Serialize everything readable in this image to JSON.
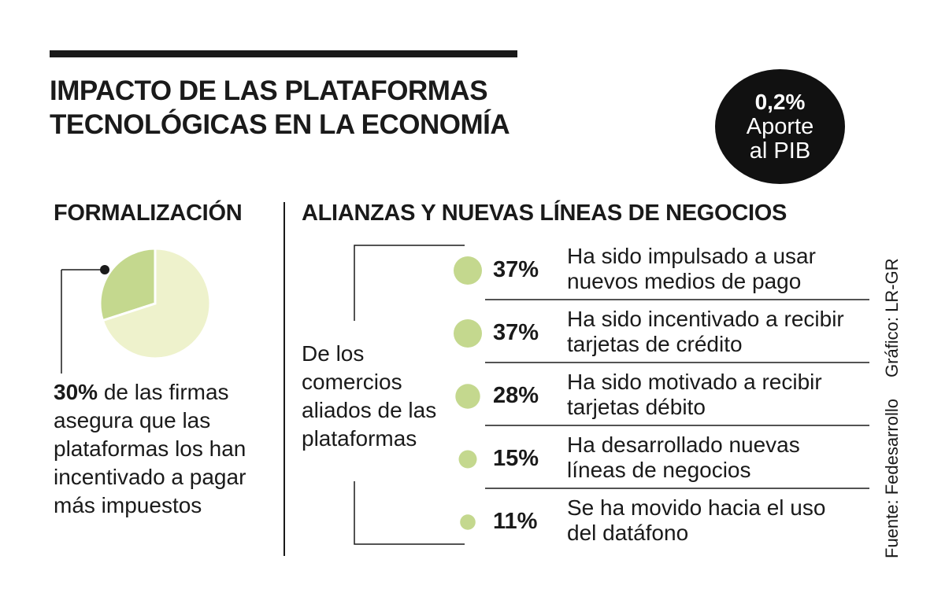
{
  "header": {
    "title_line1": "IMPACTO DE LAS PLATAFORMAS",
    "title_line2": "TECNOLÓGICAS EN LA ECONOMÍA"
  },
  "badge": {
    "value": "0,2%",
    "label_line1": "Aporte",
    "label_line2": "al PIB"
  },
  "formalizacion": {
    "heading": "FORMALIZACIÓN",
    "pct": "30%",
    "text_rest": " de las firmas asegura que las plataformas los han incentivado a pagar más impuestos"
  },
  "alianzas": {
    "heading": "ALIANZAS Y NUEVAS LÍNEAS DE NEGOCIOS",
    "left_note": "De los comercios aliados de las plataformas"
  },
  "credits": {
    "source": "Fuente: Fedesarrollo",
    "graphic": "Gráfico: LR-GR"
  },
  "colors": {
    "accent": "#c4d88e",
    "pie_light": "#eef2cc",
    "dark": "#1a1a1a"
  },
  "chart_data": [
    {
      "type": "pie",
      "values": [
        30,
        70
      ],
      "labels": [
        "30%",
        ""
      ]
    },
    {
      "type": "bar",
      "encoding": "bubble",
      "categories": [
        [
          "Ha sido impulsado a usar",
          "nuevos medios de pago"
        ],
        [
          "Ha sido incentivado a recibir",
          "tarjetas de crédito"
        ],
        [
          "Ha sido motivado a recibir",
          "tarjetas débito"
        ],
        [
          "Ha desarrollado nuevas",
          "líneas de negocios"
        ],
        [
          "Se ha movido hacia el uso",
          "del datáfono"
        ]
      ],
      "values": [
        37,
        37,
        28,
        15,
        11
      ],
      "labels": [
        "37%",
        "37%",
        "28%",
        "15%",
        "11%"
      ]
    }
  ]
}
